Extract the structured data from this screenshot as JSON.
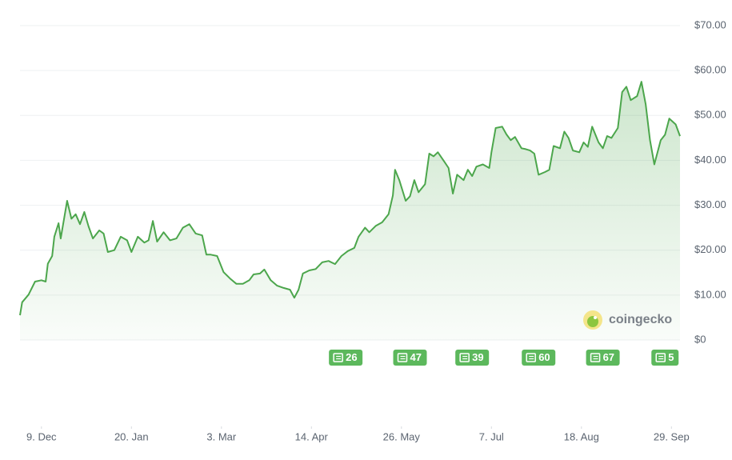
{
  "chart_data": {
    "type": "line",
    "x": [
      -10,
      -9,
      -6,
      -3,
      0,
      2,
      3,
      5,
      6,
      8,
      9,
      12,
      14,
      16,
      18,
      20,
      22,
      24,
      27,
      29,
      31,
      34,
      37,
      40,
      42,
      45,
      48,
      50,
      52,
      54,
      57,
      60,
      63,
      66,
      69,
      72,
      75,
      77,
      79,
      82,
      85,
      88,
      91,
      94,
      97,
      99,
      102,
      104,
      107,
      110,
      113,
      116,
      118,
      120,
      122,
      125,
      128,
      131,
      134,
      137,
      140,
      143,
      146,
      148,
      151,
      153,
      156,
      159,
      162,
      164,
      165,
      167,
      170,
      172,
      174,
      176,
      179,
      181,
      183,
      185,
      188,
      190,
      192,
      194,
      197,
      199,
      201,
      203,
      206,
      209,
      210,
      212,
      215,
      217,
      219,
      221,
      224,
      226,
      228,
      230,
      232,
      235,
      237,
      239,
      242,
      244,
      246,
      248,
      251,
      253,
      255,
      257,
      260,
      262,
      264,
      266,
      269,
      271,
      273,
      275,
      278,
      280,
      282,
      284,
      286,
      289,
      291,
      293,
      296,
      298
    ],
    "series": [
      {
        "color": "#4ca64c",
        "values": [
          5.5,
          8.4,
          10.1,
          13,
          13.3,
          13,
          17,
          18.7,
          23,
          26,
          22.6,
          31,
          27,
          28,
          25.8,
          28.5,
          25.3,
          22.6,
          24.4,
          23.7,
          19.6,
          20,
          23,
          22.2,
          19.6,
          23,
          21.7,
          22.2,
          26.5,
          21.9,
          24,
          22.2,
          22.6,
          25,
          25.8,
          23.7,
          23.3,
          19,
          19,
          18.7,
          15.1,
          13.7,
          12.5,
          12.5,
          13.3,
          14.6,
          14.8,
          15.7,
          13.3,
          12.1,
          11.6,
          11.2,
          9.4,
          11.2,
          14.8,
          15.5,
          15.8,
          17.3,
          17.6,
          16.9,
          18.7,
          19.8,
          20.5,
          23,
          25,
          24,
          25.4,
          26.2,
          28,
          32.2,
          37.9,
          35.6,
          31,
          32,
          35.6,
          32.9,
          34.7,
          41.5,
          40.9,
          41.8,
          39.7,
          38.3,
          32.6,
          36.8,
          35.6,
          37.9,
          36.5,
          38.6,
          39.1,
          38.3,
          41.8,
          47.2,
          47.5,
          45.8,
          44.5,
          45.2,
          42.7,
          42.5,
          42.2,
          41.5,
          36.8,
          37.4,
          37.9,
          43.2,
          42.7,
          46.4,
          45,
          42.2,
          41.8,
          44,
          43,
          47.5,
          44,
          42.7,
          45.4,
          45,
          47.2,
          55.2,
          56.4,
          53.4,
          54.3,
          57.5,
          52.5,
          44.5,
          39.1,
          44.5,
          45.7,
          49.3,
          48,
          45.4
        ]
      }
    ],
    "xlim": [
      -10,
      298
    ],
    "xticks": [
      {
        "value": 0,
        "label": "9. Dec"
      },
      {
        "value": 42,
        "label": "20. Jan"
      },
      {
        "value": 84,
        "label": "3. Mar"
      },
      {
        "value": 126,
        "label": "14. Apr"
      },
      {
        "value": 168,
        "label": "26. May"
      },
      {
        "value": 210,
        "label": "7. Jul"
      },
      {
        "value": 252,
        "label": "18. Aug"
      },
      {
        "value": 294,
        "label": "29. Sep"
      }
    ],
    "ylim": [
      0,
      70
    ],
    "yticks": [
      {
        "value": 0,
        "label": "$0"
      },
      {
        "value": 10,
        "label": "$10.00"
      },
      {
        "value": 20,
        "label": "$20.00"
      },
      {
        "value": 30,
        "label": "$30.00"
      },
      {
        "value": 40,
        "label": "$40.00"
      },
      {
        "value": 50,
        "label": "$50.00"
      },
      {
        "value": 60,
        "label": "$60.00"
      },
      {
        "value": 70,
        "label": "$70.00"
      }
    ],
    "grid": true,
    "events": [
      {
        "x": 142,
        "value": 26
      },
      {
        "x": 172,
        "value": 47
      },
      {
        "x": 201,
        "value": 39
      },
      {
        "x": 232,
        "value": 60
      },
      {
        "x": 262,
        "value": 67
      },
      {
        "x": 291,
        "value": 5
      }
    ],
    "event_color": "#5cb85c",
    "watermark": "coingecko"
  }
}
